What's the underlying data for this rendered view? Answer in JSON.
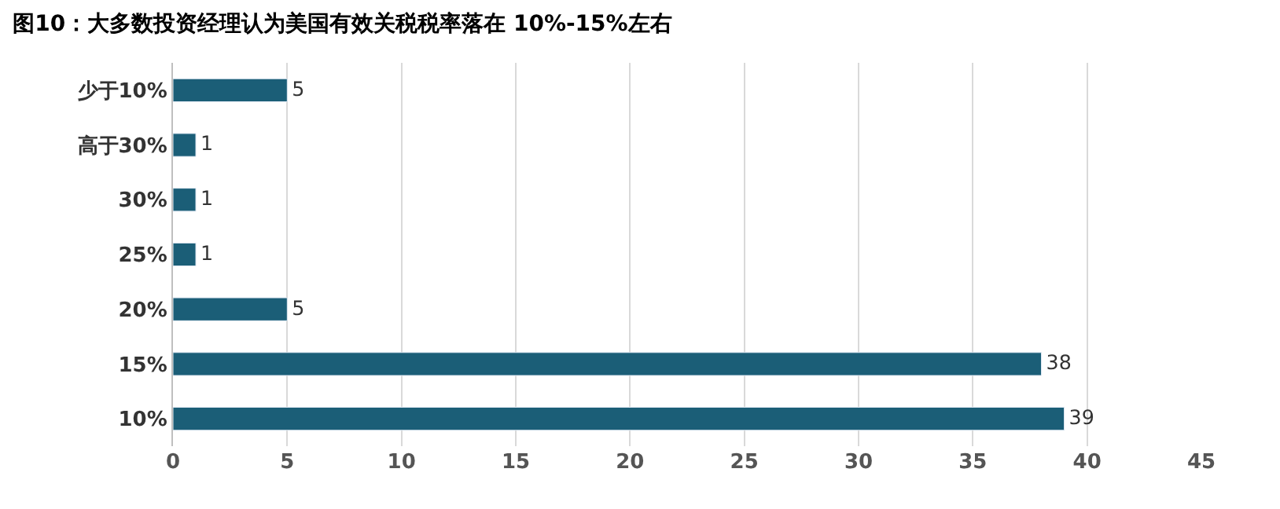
{
  "chart_data": {
    "type": "bar",
    "orientation": "horizontal",
    "title": "图10：大多数投资经理认为美国有效关税税率落在 10%-15%左右",
    "categories": [
      "少于10%",
      "高于30%",
      "30%",
      "25%",
      "20%",
      "15%",
      "10%"
    ],
    "values": [
      5,
      1,
      1,
      1,
      5,
      38,
      39
    ],
    "color": "#1b5e77",
    "data_labels": true,
    "xlim": [
      0,
      45
    ],
    "xticks": [
      0,
      5,
      10,
      15,
      20,
      25,
      30,
      35,
      40,
      45
    ],
    "grid": "x",
    "legend": false
  }
}
